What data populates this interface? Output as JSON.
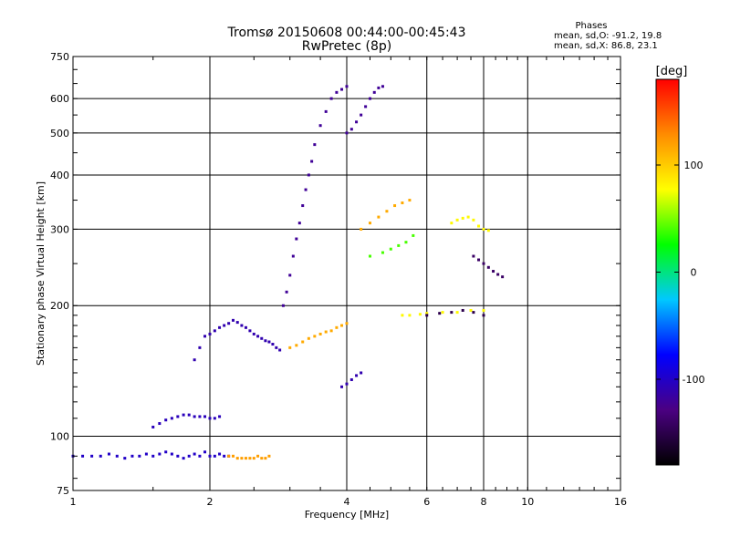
{
  "chart_data": {
    "type": "scatter",
    "title": "Tromsø 20150608 00:44:00-00:45:43",
    "subtitle": "RwPretec (8p)",
    "xlabel": "Frequency [MHz]",
    "ylabel": "Stationary phase Virtual Height [km]",
    "x_scale": "log",
    "y_scale": "log",
    "xlim": [
      1,
      16
    ],
    "ylim": [
      75,
      750
    ],
    "x_ticks": [
      1,
      2,
      4,
      6,
      8,
      10,
      16
    ],
    "x_tick_labels": [
      "1",
      "2",
      "4",
      "6",
      "8",
      "10",
      "16"
    ],
    "y_ticks": [
      75,
      100,
      200,
      300,
      400,
      500,
      600,
      750
    ],
    "y_tick_labels": [
      "75",
      "100",
      "200",
      "300",
      "400",
      "500",
      "600",
      "750"
    ],
    "grid": true,
    "phase_box": {
      "heading": "Phases",
      "line1": "mean, sd,O: -91.2, 19.8",
      "line2": "mean, sd,X:  86.8, 23.1"
    },
    "colorbar": {
      "label": "[deg]",
      "range": [
        -180,
        180
      ],
      "ticks": [
        100,
        0,
        -100
      ],
      "tick_labels": [
        "100",
        "0",
        "-100"
      ],
      "colors": [
        "#000000",
        "#4b0082",
        "#0000ff",
        "#00c8ff",
        "#00ff00",
        "#ffff00",
        "#ff8c00",
        "#ff0000"
      ]
    },
    "series": [
      {
        "x": [
          1.0,
          1.05,
          1.1,
          1.15,
          1.2,
          1.25,
          1.3,
          1.35,
          1.4,
          1.45,
          1.5,
          1.55,
          1.6,
          1.65,
          1.7,
          1.75,
          1.8,
          1.85,
          1.9,
          1.95,
          2.0,
          2.05,
          2.1,
          2.15,
          2.2
        ],
        "y": [
          90,
          90,
          90,
          90,
          91,
          90,
          89,
          90,
          90,
          91,
          90,
          91,
          92,
          91,
          90,
          89,
          90,
          91,
          90,
          92,
          90,
          90,
          91,
          90,
          90
        ],
        "phase": -100
      },
      {
        "x": [
          2.2,
          2.25,
          2.3,
          2.35,
          2.4,
          2.45,
          2.5,
          2.55,
          2.6,
          2.65,
          2.7
        ],
        "y": [
          90,
          90,
          89,
          89,
          89,
          89,
          89,
          90,
          89,
          89,
          90
        ],
        "phase": 120
      },
      {
        "x": [
          1.5,
          1.55,
          1.6,
          1.65,
          1.7,
          1.75,
          1.8,
          1.85,
          1.9,
          1.95,
          2.0,
          2.05,
          2.1
        ],
        "y": [
          105,
          107,
          109,
          110,
          111,
          112,
          112,
          111,
          111,
          111,
          110,
          110,
          111
        ],
        "phase": -105
      },
      {
        "x": [
          1.85,
          1.9,
          1.95,
          2.0,
          2.05,
          2.1,
          2.15,
          2.2,
          2.25,
          2.3,
          2.35,
          2.4,
          2.45,
          2.5,
          2.55,
          2.6,
          2.65,
          2.7,
          2.75,
          2.8,
          2.85
        ],
        "y": [
          150,
          160,
          170,
          172,
          175,
          178,
          180,
          182,
          185,
          183,
          180,
          178,
          175,
          172,
          170,
          168,
          166,
          165,
          163,
          160,
          158
        ],
        "phase": -110
      },
      {
        "x": [
          2.9,
          2.95,
          3.0,
          3.05,
          3.1,
          3.15,
          3.2,
          3.25,
          3.3,
          3.35,
          3.4,
          3.5,
          3.6,
          3.7,
          3.8,
          3.9,
          4.0
        ],
        "y": [
          200,
          215,
          235,
          260,
          285,
          310,
          340,
          370,
          400,
          430,
          470,
          520,
          560,
          600,
          620,
          630,
          640
        ],
        "phase": -120
      },
      {
        "x": [
          3.0,
          3.1,
          3.2,
          3.3,
          3.4,
          3.5,
          3.6,
          3.7,
          3.8,
          3.9,
          4.0
        ],
        "y": [
          160,
          162,
          165,
          168,
          170,
          172,
          174,
          175,
          178,
          180,
          182
        ],
        "phase": 115
      },
      {
        "x": [
          4.0,
          4.1,
          4.2,
          4.3,
          4.4,
          4.5,
          4.6,
          4.7,
          4.8
        ],
        "y": [
          500,
          510,
          530,
          550,
          575,
          600,
          620,
          635,
          640
        ],
        "phase": -120
      },
      {
        "x": [
          4.3,
          4.5,
          4.7,
          4.9,
          5.1,
          5.3,
          5.5
        ],
        "y": [
          300,
          310,
          320,
          330,
          340,
          345,
          350
        ],
        "phase": 115
      },
      {
        "x": [
          4.5,
          4.8,
          5.0,
          5.2,
          5.4,
          5.6
        ],
        "y": [
          260,
          265,
          270,
          275,
          280,
          290
        ],
        "phase": 40
      },
      {
        "x": [
          5.3,
          5.5,
          5.8,
          6.0,
          6.5,
          7.0,
          7.5,
          8.0
        ],
        "y": [
          190,
          190,
          191,
          192,
          193,
          193,
          195,
          195
        ],
        "phase": 80
      },
      {
        "x": [
          6.8,
          7.0,
          7.2,
          7.4,
          7.6,
          7.8,
          8.0,
          8.2
        ],
        "y": [
          310,
          315,
          318,
          320,
          315,
          305,
          300,
          298
        ],
        "phase": 80
      },
      {
        "x": [
          6.0,
          6.4,
          6.8,
          7.2,
          7.6,
          8.0
        ],
        "y": [
          190,
          192,
          193,
          195,
          193,
          190
        ],
        "phase": -150
      },
      {
        "x": [
          7.6,
          7.8,
          8.0,
          8.2,
          8.4,
          8.6,
          8.8
        ],
        "y": [
          260,
          255,
          250,
          245,
          240,
          236,
          233
        ],
        "phase": -140
      },
      {
        "x": [
          3.9,
          4.0,
          4.1,
          4.2,
          4.3
        ],
        "y": [
          130,
          132,
          135,
          138,
          140
        ],
        "phase": -110
      }
    ]
  }
}
